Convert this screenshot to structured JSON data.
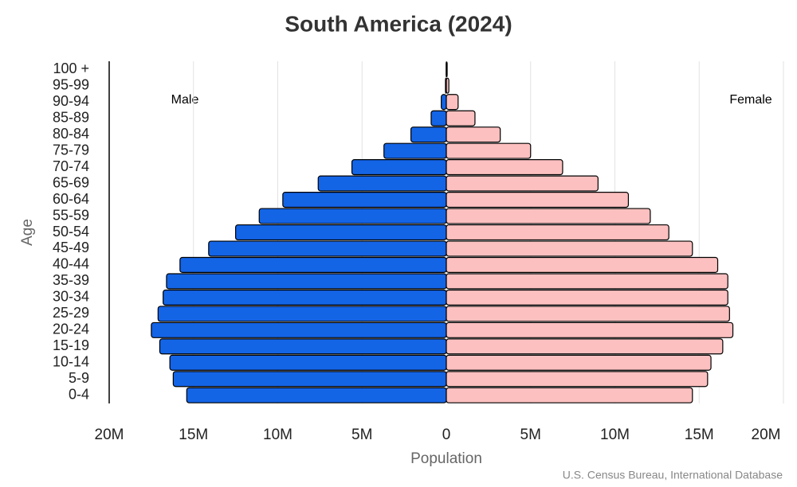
{
  "chart_data": {
    "type": "pyramid",
    "title": "South America (2024)",
    "x_label": "Population",
    "y_label": "Age",
    "source": "U.S. Census Bureau, International Database",
    "categories": [
      "0-4",
      "5-9",
      "10-14",
      "15-19",
      "20-24",
      "25-29",
      "30-34",
      "35-39",
      "40-44",
      "45-49",
      "50-54",
      "55-59",
      "60-64",
      "65-69",
      "70-74",
      "75-79",
      "80-84",
      "85-89",
      "90-94",
      "95-99",
      "100 +"
    ],
    "series": [
      {
        "name": "Male",
        "color": "#1464e6",
        "side": "left",
        "values": [
          15400000,
          16200000,
          16400000,
          17000000,
          17500000,
          17100000,
          16800000,
          16600000,
          15800000,
          14100000,
          12500000,
          11100000,
          9700000,
          7600000,
          5600000,
          3700000,
          2100000,
          900000,
          300000,
          50000,
          10000
        ]
      },
      {
        "name": "Female",
        "color": "#fcc0c0",
        "side": "right",
        "values": [
          14600000,
          15500000,
          15700000,
          16400000,
          17000000,
          16800000,
          16700000,
          16700000,
          16100000,
          14600000,
          13200000,
          12100000,
          10800000,
          9000000,
          6900000,
          5000000,
          3200000,
          1700000,
          700000,
          150000,
          50000
        ]
      }
    ],
    "xlim": [
      -20000000,
      20000000
    ],
    "xticks": [
      {
        "value": -20000000,
        "label": "20M"
      },
      {
        "value": -15000000,
        "label": "15M"
      },
      {
        "value": -10000000,
        "label": "10M"
      },
      {
        "value": -5000000,
        "label": "5M"
      },
      0,
      {
        "value": 5000000,
        "label": "5M"
      },
      {
        "value": 10000000,
        "label": "10M"
      },
      {
        "value": 15000000,
        "label": "15M"
      },
      {
        "value": 20000000,
        "label": "20M"
      }
    ],
    "grid": true
  }
}
